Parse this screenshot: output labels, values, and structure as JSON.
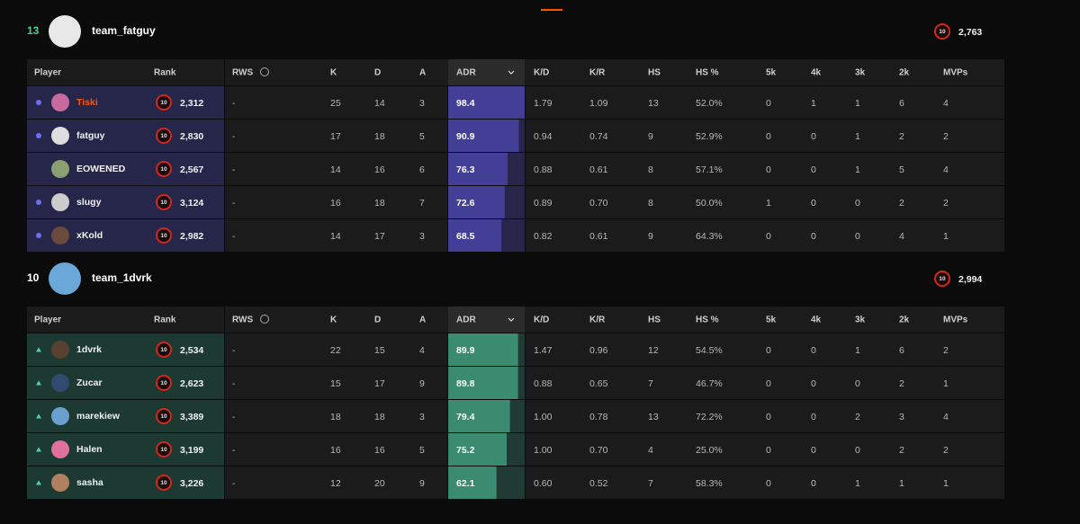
{
  "columns": [
    "Player",
    "Rank",
    "RWS",
    "K",
    "D",
    "A",
    "ADR",
    "K/D",
    "K/R",
    "HS",
    "HS %",
    "5k",
    "4k",
    "3k",
    "2k",
    "MVPs"
  ],
  "teams": [
    {
      "score": 13,
      "name": "team_fatguy",
      "level": 10,
      "elo": "2,763",
      "won": true,
      "players": [
        {
          "name": "Tiski",
          "highlight": true,
          "premade": true,
          "level": 10,
          "elo": "2,312",
          "stats": [
            "-",
            "25",
            "14",
            "3",
            98.4,
            "1.79",
            "1.09",
            "13",
            "52.0%",
            "0",
            "1",
            "1",
            "6",
            "4"
          ]
        },
        {
          "name": "fatguy",
          "premade": true,
          "level": 10,
          "elo": "2,830",
          "stats": [
            "-",
            "17",
            "18",
            "5",
            90.9,
            "0.94",
            "0.74",
            "9",
            "52.9%",
            "0",
            "0",
            "1",
            "2",
            "2"
          ]
        },
        {
          "name": "EOWENED",
          "premade": false,
          "level": 10,
          "elo": "2,567",
          "stats": [
            "-",
            "14",
            "16",
            "6",
            76.3,
            "0.88",
            "0.61",
            "8",
            "57.1%",
            "0",
            "0",
            "1",
            "5",
            "4"
          ]
        },
        {
          "name": "slugy",
          "premade": true,
          "level": 10,
          "elo": "3,124",
          "stats": [
            "-",
            "16",
            "18",
            "7",
            72.6,
            "0.89",
            "0.70",
            "8",
            "50.0%",
            "1",
            "0",
            "0",
            "2",
            "2"
          ]
        },
        {
          "name": "xKold",
          "premade": true,
          "level": 10,
          "elo": "2,982",
          "stats": [
            "-",
            "14",
            "17",
            "3",
            68.5,
            "0.82",
            "0.61",
            "9",
            "64.3%",
            "0",
            "0",
            "0",
            "4",
            "1"
          ]
        }
      ]
    },
    {
      "score": 10,
      "name": "team_1dvrk",
      "level": 10,
      "elo": "2,994",
      "won": false,
      "players": [
        {
          "name": "1dvrk",
          "premade": true,
          "level": 10,
          "elo": "2,534",
          "stats": [
            "-",
            "22",
            "15",
            "4",
            89.9,
            "1.47",
            "0.96",
            "12",
            "54.5%",
            "0",
            "0",
            "1",
            "6",
            "2"
          ]
        },
        {
          "name": "Zucar",
          "premade": true,
          "level": 10,
          "elo": "2,623",
          "stats": [
            "-",
            "15",
            "17",
            "9",
            89.8,
            "0.88",
            "0.65",
            "7",
            "46.7%",
            "0",
            "0",
            "0",
            "2",
            "1"
          ]
        },
        {
          "name": "marekiew",
          "premade": true,
          "level": 10,
          "elo": "3,389",
          "stats": [
            "-",
            "18",
            "18",
            "3",
            79.4,
            "1.00",
            "0.78",
            "13",
            "72.2%",
            "0",
            "0",
            "2",
            "3",
            "4"
          ]
        },
        {
          "name": "Halen",
          "premade": true,
          "level": 10,
          "elo": "3,199",
          "stats": [
            "-",
            "16",
            "16",
            "5",
            75.2,
            "1.00",
            "0.70",
            "4",
            "25.0%",
            "0",
            "0",
            "0",
            "2",
            "2"
          ]
        },
        {
          "name": "sasha",
          "premade": true,
          "level": 10,
          "elo": "3,226",
          "stats": [
            "-",
            "12",
            "20",
            "9",
            62.1,
            "0.60",
            "0.52",
            "7",
            "58.3%",
            "0",
            "0",
            "1",
            "1",
            "1"
          ]
        }
      ]
    }
  ]
}
